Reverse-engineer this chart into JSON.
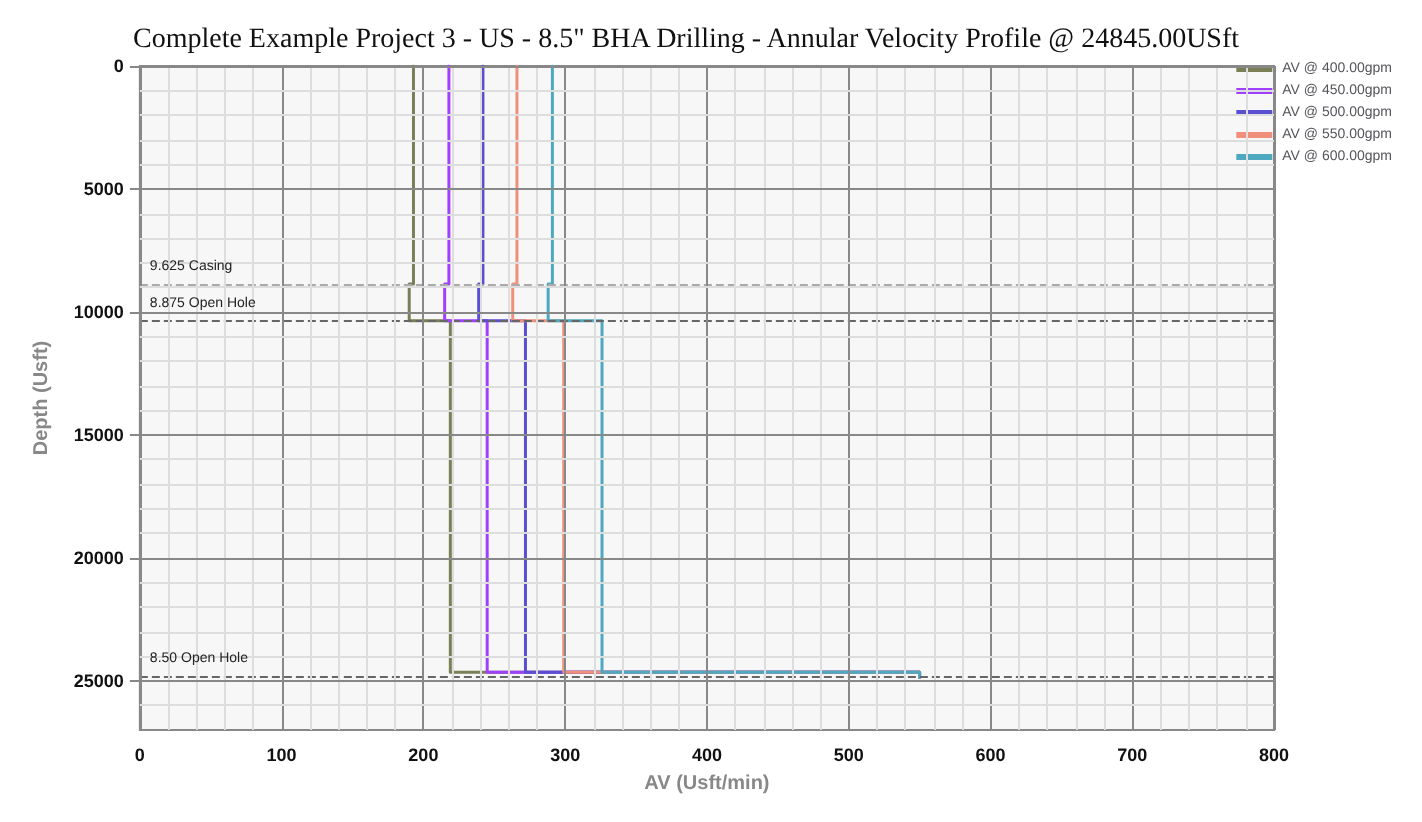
{
  "chart_data": {
    "type": "line",
    "title": "Complete Example Project 3 - US - 8.5\" BHA Drilling - Annular Velocity Profile @ 24845.00USft",
    "xlabel": "AV (Usft/min)",
    "ylabel": "Depth (Usft)",
    "xlim": [
      0,
      800
    ],
    "xticks": [
      0,
      100,
      200,
      300,
      400,
      500,
      600,
      700,
      800
    ],
    "ylim": [
      27000,
      0
    ],
    "yticks": [
      0,
      5000,
      10000,
      15000,
      20000,
      25000
    ],
    "grid": true,
    "legend": "right",
    "marker": "none",
    "line_style": "solid",
    "series": [
      {
        "name": "AV @ 400.00gpm",
        "color": "#7a7f55",
        "x": [
          193,
          193,
          190,
          190,
          219,
          219,
          550,
          550
        ],
        "values": [
          0,
          8860,
          8860,
          10360,
          10360,
          24650,
          24650,
          24850
        ]
      },
      {
        "name": "AV @ 450.00gpm",
        "color": "#a040ff",
        "x": [
          218,
          218,
          215,
          215,
          245,
          245,
          550,
          550
        ],
        "values": [
          0,
          8860,
          8860,
          10360,
          10360,
          24650,
          24650,
          24850
        ]
      },
      {
        "name": "AV @ 500.00gpm",
        "color": "#5a4fd0",
        "x": [
          242,
          242,
          239,
          239,
          272,
          272,
          550,
          550
        ],
        "values": [
          0,
          8860,
          8860,
          10360,
          10360,
          24650,
          24650,
          24850
        ]
      },
      {
        "name": "AV @ 550.00gpm",
        "color": "#f0907a",
        "x": [
          266,
          266,
          263,
          263,
          299,
          299,
          550,
          550
        ],
        "values": [
          0,
          8860,
          8860,
          10360,
          10360,
          24650,
          24650,
          24850
        ]
      },
      {
        "name": "AV @ 600.00gpm",
        "color": "#4ea8c0",
        "x": [
          291,
          291,
          288,
          288,
          326,
          326,
          550,
          550
        ],
        "values": [
          0,
          8860,
          8860,
          10360,
          10360,
          24650,
          24650,
          24850
        ]
      }
    ],
    "ref_lines": [
      {
        "axis": "y",
        "value": 8860,
        "label": "9.625 Casing",
        "color": "#aaaaaa",
        "line_style": "dashed"
      },
      {
        "axis": "y",
        "value": 10360,
        "label": "8.875 Open Hole",
        "color": "#666666",
        "line_style": "dashed"
      },
      {
        "axis": "y",
        "value": 24800,
        "label": "8.50 Open Hole",
        "color": "#666666",
        "line_style": "dashed"
      }
    ]
  }
}
